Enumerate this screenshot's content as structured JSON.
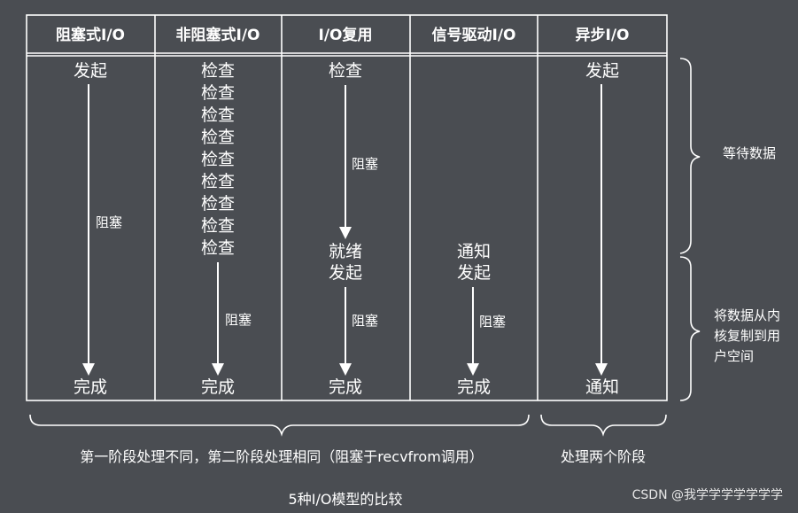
{
  "columns": [
    {
      "header": "阻塞式I/O",
      "top": [
        "发起"
      ],
      "arrow_label": "阻塞",
      "bottom": "完成"
    },
    {
      "header": "非阻塞式I/O",
      "top": [
        "检查",
        "检查",
        "检查",
        "检查",
        "检查",
        "检查",
        "检查",
        "检查",
        "检查"
      ],
      "arrow_label": "阻塞",
      "bottom": "完成"
    },
    {
      "header": "I/O复用",
      "top": [
        "检查"
      ],
      "upper_arrow_label": "阻塞",
      "middle": [
        "就绪",
        "发起"
      ],
      "arrow_label": "阻塞",
      "bottom": "完成"
    },
    {
      "header": "信号驱动I/O",
      "middle": [
        "通知",
        "发起"
      ],
      "arrow_label": "阻塞",
      "bottom": "完成"
    },
    {
      "header": "异步I/O",
      "top": [
        "发起"
      ],
      "bottom": "通知"
    }
  ],
  "phases": {
    "wait": "等待数据",
    "copy_lines": [
      "将数据从内",
      "核复制到用",
      "户空间"
    ]
  },
  "footer": {
    "left_brace_label": "第一阶段处理不同，第二阶段处理相同（阻塞于recvfrom调用）",
    "right_brace_label": "处理两个阶段",
    "caption": "5种I/O模型的比较"
  },
  "watermark": "CSDN @我学学学学学学学"
}
